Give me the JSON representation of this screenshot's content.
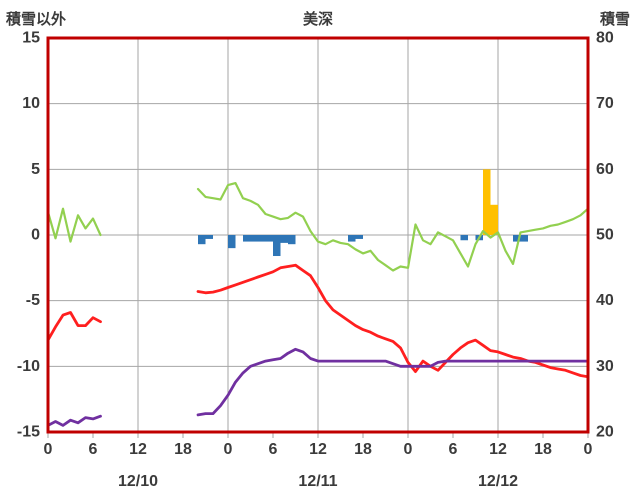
{
  "header": {
    "left_axis_title": "積雪以外",
    "station_title": "美深",
    "right_axis_title": "積雪"
  },
  "chart_data": {
    "type": "line+bar",
    "station": "美深",
    "grid_color": "#a6a6a6",
    "frame_color": "#c00000",
    "text_color": "#3b3b3b",
    "left_axis": {
      "title": "積雪以外",
      "min": -15,
      "max": 15,
      "tick_values": [
        15,
        10,
        5,
        0,
        -5,
        -10,
        -15
      ]
    },
    "right_axis": {
      "title": "積雪",
      "min": 20,
      "max": 80,
      "tick_values": [
        80,
        70,
        60,
        50,
        40,
        30,
        20
      ]
    },
    "x_axis": {
      "hours_total": 72,
      "tick_hours": [
        0,
        6,
        12,
        18,
        24,
        30,
        36,
        42,
        48,
        54,
        60,
        66,
        72
      ],
      "tick_labels": [
        "0",
        "6",
        "12",
        "18",
        "0",
        "6",
        "12",
        "18",
        "0",
        "6",
        "12",
        "18",
        "0"
      ],
      "grid_hours": [
        12,
        24,
        36,
        48,
        60
      ],
      "day_labels": [
        {
          "label": "12/10",
          "center_hour": 12
        },
        {
          "label": "12/11",
          "center_hour": 36
        },
        {
          "label": "12/12",
          "center_hour": 60
        }
      ]
    },
    "series": [
      {
        "id": "yellow-bars",
        "type": "bar",
        "axis": "left",
        "color": "#ffc000",
        "bars": [
          [
            58,
            5.0
          ],
          [
            59,
            2.3
          ]
        ]
      },
      {
        "id": "blue-bars",
        "type": "bar",
        "axis": "left",
        "color": "#2e75b6",
        "bars": [
          [
            20,
            -0.7
          ],
          [
            21,
            -0.3
          ],
          [
            24,
            -1.0
          ],
          [
            26,
            -0.5
          ],
          [
            27,
            -0.5
          ],
          [
            28,
            -0.5
          ],
          [
            29,
            -0.5
          ],
          [
            30,
            -1.6
          ],
          [
            31,
            -0.6
          ],
          [
            32,
            -0.7
          ],
          [
            40,
            -0.5
          ],
          [
            41,
            -0.3
          ],
          [
            55,
            -0.4
          ],
          [
            57,
            -0.4
          ],
          [
            62,
            -0.5
          ],
          [
            63,
            -0.5
          ]
        ]
      },
      {
        "id": "snow-depth-line-green",
        "type": "line",
        "axis": "right",
        "color": "#92d050",
        "width": 2.2,
        "segments": [
          [
            [
              0,
              53.5
            ],
            [
              1,
              49.5
            ],
            [
              2,
              54
            ],
            [
              3,
              49
            ],
            [
              4,
              53
            ],
            [
              5,
              51
            ],
            [
              6,
              52.5
            ],
            [
              7,
              50
            ]
          ],
          [
            [
              20,
              57.0
            ],
            [
              21,
              55.8
            ],
            [
              22,
              55.6
            ],
            [
              23,
              55.4
            ],
            [
              24,
              57.6
            ],
            [
              25,
              57.9
            ],
            [
              26,
              55.6
            ],
            [
              27,
              55.2
            ],
            [
              28,
              54.6
            ],
            [
              29,
              53.2
            ],
            [
              30,
              52.8
            ],
            [
              31,
              52.4
            ],
            [
              32,
              52.6
            ],
            [
              33,
              53.4
            ],
            [
              34,
              52.8
            ],
            [
              35,
              50.6
            ],
            [
              36,
              49.0
            ],
            [
              37,
              48.6
            ],
            [
              38,
              49.2
            ],
            [
              39,
              48.8
            ],
            [
              40,
              48.6
            ],
            [
              41,
              47.8
            ],
            [
              42,
              47.2
            ],
            [
              43,
              47.6
            ],
            [
              44,
              46.2
            ],
            [
              45,
              45.4
            ],
            [
              46,
              44.6
            ],
            [
              47,
              45.2
            ],
            [
              48,
              45.0
            ],
            [
              49,
              51.6
            ],
            [
              50,
              49.2
            ],
            [
              51,
              48.6
            ],
            [
              52,
              50.4
            ],
            [
              53,
              49.8
            ],
            [
              54,
              49.2
            ],
            [
              55,
              47.2
            ],
            [
              56,
              45.2
            ],
            [
              57,
              48.6
            ],
            [
              58,
              50.6
            ],
            [
              59,
              49.6
            ],
            [
              60,
              50.4
            ],
            [
              61,
              47.6
            ],
            [
              62,
              45.6
            ],
            [
              63,
              50.4
            ],
            [
              64,
              50.6
            ],
            [
              65,
              50.8
            ],
            [
              66,
              51.0
            ],
            [
              67,
              51.4
            ],
            [
              68,
              51.6
            ],
            [
              69,
              52.0
            ],
            [
              70,
              52.4
            ],
            [
              71,
              53.0
            ],
            [
              72,
              54.0
            ]
          ]
        ]
      },
      {
        "id": "red-line",
        "type": "line",
        "axis": "left",
        "color": "#ff1f1f",
        "width": 2.8,
        "segments": [
          [
            [
              0,
              -8.0
            ],
            [
              1,
              -7.0
            ],
            [
              2,
              -6.1
            ],
            [
              3,
              -5.9
            ],
            [
              4,
              -6.9
            ],
            [
              5,
              -6.9
            ],
            [
              6,
              -6.3
            ],
            [
              7,
              -6.6
            ]
          ],
          [
            [
              20,
              -4.3
            ],
            [
              21,
              -4.4
            ],
            [
              22,
              -4.35
            ],
            [
              23,
              -4.2
            ],
            [
              24,
              -4.0
            ],
            [
              25,
              -3.8
            ],
            [
              26,
              -3.6
            ],
            [
              27,
              -3.4
            ],
            [
              28,
              -3.2
            ],
            [
              29,
              -3.0
            ],
            [
              30,
              -2.8
            ],
            [
              31,
              -2.5
            ],
            [
              32,
              -2.4
            ],
            [
              33,
              -2.3
            ],
            [
              34,
              -2.7
            ],
            [
              35,
              -3.1
            ],
            [
              36,
              -4.0
            ],
            [
              37,
              -5.0
            ],
            [
              38,
              -5.7
            ],
            [
              39,
              -6.1
            ],
            [
              40,
              -6.5
            ],
            [
              41,
              -6.9
            ],
            [
              42,
              -7.2
            ],
            [
              43,
              -7.4
            ],
            [
              44,
              -7.7
            ],
            [
              45,
              -7.9
            ],
            [
              46,
              -8.1
            ],
            [
              47,
              -8.6
            ],
            [
              48,
              -9.7
            ],
            [
              49,
              -10.4
            ],
            [
              50,
              -9.6
            ],
            [
              51,
              -10.0
            ],
            [
              52,
              -10.3
            ],
            [
              53,
              -9.7
            ],
            [
              54,
              -9.1
            ],
            [
              55,
              -8.6
            ],
            [
              56,
              -8.2
            ],
            [
              57,
              -8.0
            ],
            [
              58,
              -8.4
            ],
            [
              59,
              -8.8
            ],
            [
              60,
              -8.9
            ],
            [
              61,
              -9.1
            ],
            [
              62,
              -9.3
            ],
            [
              63,
              -9.4
            ],
            [
              64,
              -9.6
            ],
            [
              65,
              -9.7
            ],
            [
              66,
              -9.9
            ],
            [
              67,
              -10.1
            ],
            [
              68,
              -10.2
            ],
            [
              69,
              -10.3
            ],
            [
              70,
              -10.5
            ],
            [
              71,
              -10.7
            ],
            [
              72,
              -10.8
            ]
          ]
        ]
      },
      {
        "id": "purple-line",
        "type": "line",
        "axis": "left",
        "color": "#7030a0",
        "width": 2.8,
        "segments": [
          [
            [
              0,
              -14.5
            ],
            [
              1,
              -14.2
            ],
            [
              2,
              -14.5
            ],
            [
              3,
              -14.1
            ],
            [
              4,
              -14.3
            ],
            [
              5,
              -13.9
            ],
            [
              6,
              -14.0
            ],
            [
              7,
              -13.8
            ]
          ],
          [
            [
              20,
              -13.7
            ],
            [
              21,
              -13.6
            ],
            [
              22,
              -13.6
            ],
            [
              23,
              -13.0
            ],
            [
              24,
              -12.2
            ],
            [
              25,
              -11.2
            ],
            [
              26,
              -10.5
            ],
            [
              27,
              -10.0
            ],
            [
              28,
              -9.8
            ],
            [
              29,
              -9.6
            ],
            [
              30,
              -9.5
            ],
            [
              31,
              -9.4
            ],
            [
              32,
              -9.0
            ],
            [
              33,
              -8.7
            ],
            [
              34,
              -8.9
            ],
            [
              35,
              -9.4
            ],
            [
              36,
              -9.6
            ],
            [
              37,
              -9.6
            ],
            [
              38,
              -9.6
            ],
            [
              39,
              -9.6
            ],
            [
              40,
              -9.6
            ],
            [
              41,
              -9.6
            ],
            [
              42,
              -9.6
            ],
            [
              43,
              -9.6
            ],
            [
              44,
              -9.6
            ],
            [
              45,
              -9.6
            ],
            [
              46,
              -9.8
            ],
            [
              47,
              -10.0
            ],
            [
              48,
              -10.0
            ],
            [
              49,
              -10.0
            ],
            [
              50,
              -10.0
            ],
            [
              51,
              -10.0
            ],
            [
              52,
              -9.7
            ],
            [
              53,
              -9.6
            ],
            [
              54,
              -9.6
            ],
            [
              55,
              -9.6
            ],
            [
              56,
              -9.6
            ],
            [
              57,
              -9.6
            ],
            [
              58,
              -9.6
            ],
            [
              59,
              -9.6
            ],
            [
              60,
              -9.6
            ],
            [
              61,
              -9.6
            ],
            [
              62,
              -9.6
            ],
            [
              63,
              -9.6
            ],
            [
              64,
              -9.6
            ],
            [
              65,
              -9.6
            ],
            [
              66,
              -9.6
            ],
            [
              67,
              -9.6
            ],
            [
              68,
              -9.6
            ],
            [
              69,
              -9.6
            ],
            [
              70,
              -9.6
            ],
            [
              71,
              -9.6
            ],
            [
              72,
              -9.6
            ]
          ]
        ]
      }
    ]
  }
}
